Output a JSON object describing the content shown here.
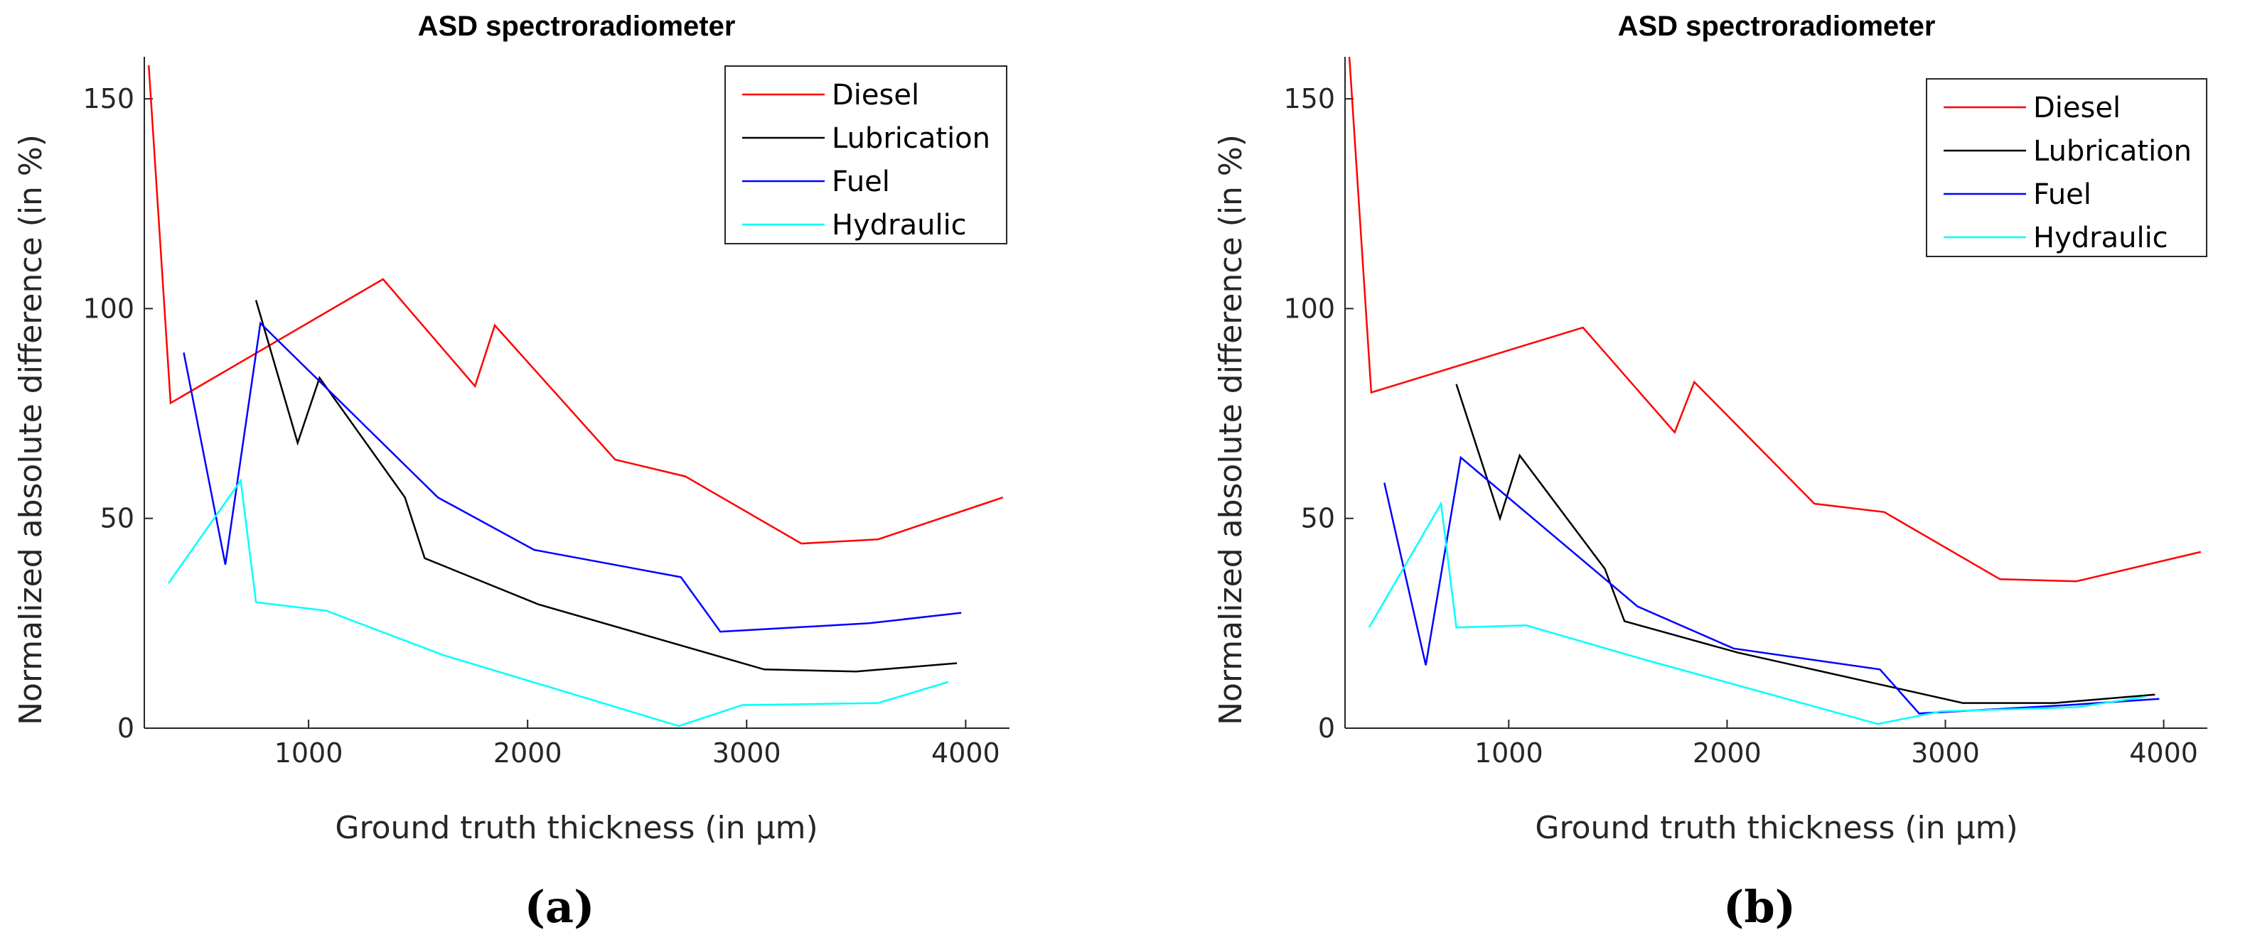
{
  "chart_data": [
    {
      "type": "line",
      "panel_caption": "(a)",
      "title": "ASD spectroradiometer",
      "xlabel": "Ground truth thickness (in µm)",
      "ylabel": "Normalized absolute difference (in %)",
      "xlim": [
        250,
        4200
      ],
      "ylim": [
        0,
        160
      ],
      "xticks": [
        1000,
        2000,
        3000,
        4000
      ],
      "yticks": [
        0,
        50,
        100,
        150
      ],
      "legend_position": "top-right",
      "grid": false,
      "series": [
        {
          "name": "Diesel",
          "color": "#ff0000",
          "x": [
            270,
            370,
            1340,
            1760,
            1850,
            2400,
            2720,
            3250,
            3600,
            4170
          ],
          "y": [
            158,
            77.5,
            107,
            81.5,
            96,
            64,
            60,
            44,
            45,
            55
          ]
        },
        {
          "name": "Lubrication",
          "color": "#000000",
          "x": [
            760,
            950,
            1050,
            1440,
            1530,
            2050,
            3080,
            3500,
            3960
          ],
          "y": [
            102,
            68,
            83.5,
            55,
            40.5,
            29.5,
            14,
            13.5,
            15.5
          ]
        },
        {
          "name": "Fuel",
          "color": "#0000ff",
          "x": [
            430,
            620,
            780,
            1590,
            2030,
            2700,
            2880,
            3560,
            3980
          ],
          "y": [
            89.5,
            39,
            96.5,
            55,
            42.5,
            36,
            23,
            25,
            27.5
          ]
        },
        {
          "name": "Hydraulic",
          "color": "#00ffff",
          "x": [
            360,
            690,
            760,
            1080,
            1610,
            2690,
            2980,
            3600,
            3920
          ],
          "y": [
            34.5,
            59,
            30,
            28,
            17.5,
            0.5,
            5.5,
            6,
            11
          ]
        }
      ]
    },
    {
      "type": "line",
      "panel_caption": "(b)",
      "title": "ASD spectroradiometer",
      "xlabel": "Ground truth thickness (in µm)",
      "ylabel": "Normalized absolute difference (in %)",
      "xlim": [
        250,
        4200
      ],
      "ylim": [
        0,
        160
      ],
      "xticks": [
        1000,
        2000,
        3000,
        4000
      ],
      "yticks": [
        0,
        50,
        100,
        150
      ],
      "legend_position": "top-right",
      "grid": false,
      "series": [
        {
          "name": "Diesel",
          "color": "#ff0000",
          "x": [
            270,
            370,
            1340,
            1760,
            1850,
            2400,
            2720,
            3250,
            3600,
            4170
          ],
          "y": [
            160,
            80,
            95.5,
            70.5,
            82.5,
            53.5,
            51.5,
            35.5,
            35,
            42
          ]
        },
        {
          "name": "Lubrication",
          "color": "#000000",
          "x": [
            760,
            960,
            1050,
            1440,
            1530,
            2050,
            3080,
            3500,
            3960
          ],
          "y": [
            82,
            50,
            65,
            38,
            25.5,
            18,
            6,
            6,
            8
          ]
        },
        {
          "name": "Fuel",
          "color": "#0000ff",
          "x": [
            430,
            620,
            780,
            1590,
            2030,
            2700,
            2880,
            3560,
            3980
          ],
          "y": [
            58.5,
            15,
            64.5,
            29,
            19,
            14,
            3.5,
            5.5,
            7
          ]
        },
        {
          "name": "Hydraulic",
          "color": "#00ffff",
          "x": [
            360,
            690,
            760,
            1080,
            1610,
            2690,
            2980,
            3600,
            3920
          ],
          "y": [
            24,
            53.5,
            24,
            24.5,
            16.5,
            1,
            4,
            5,
            7.5
          ]
        }
      ]
    }
  ]
}
